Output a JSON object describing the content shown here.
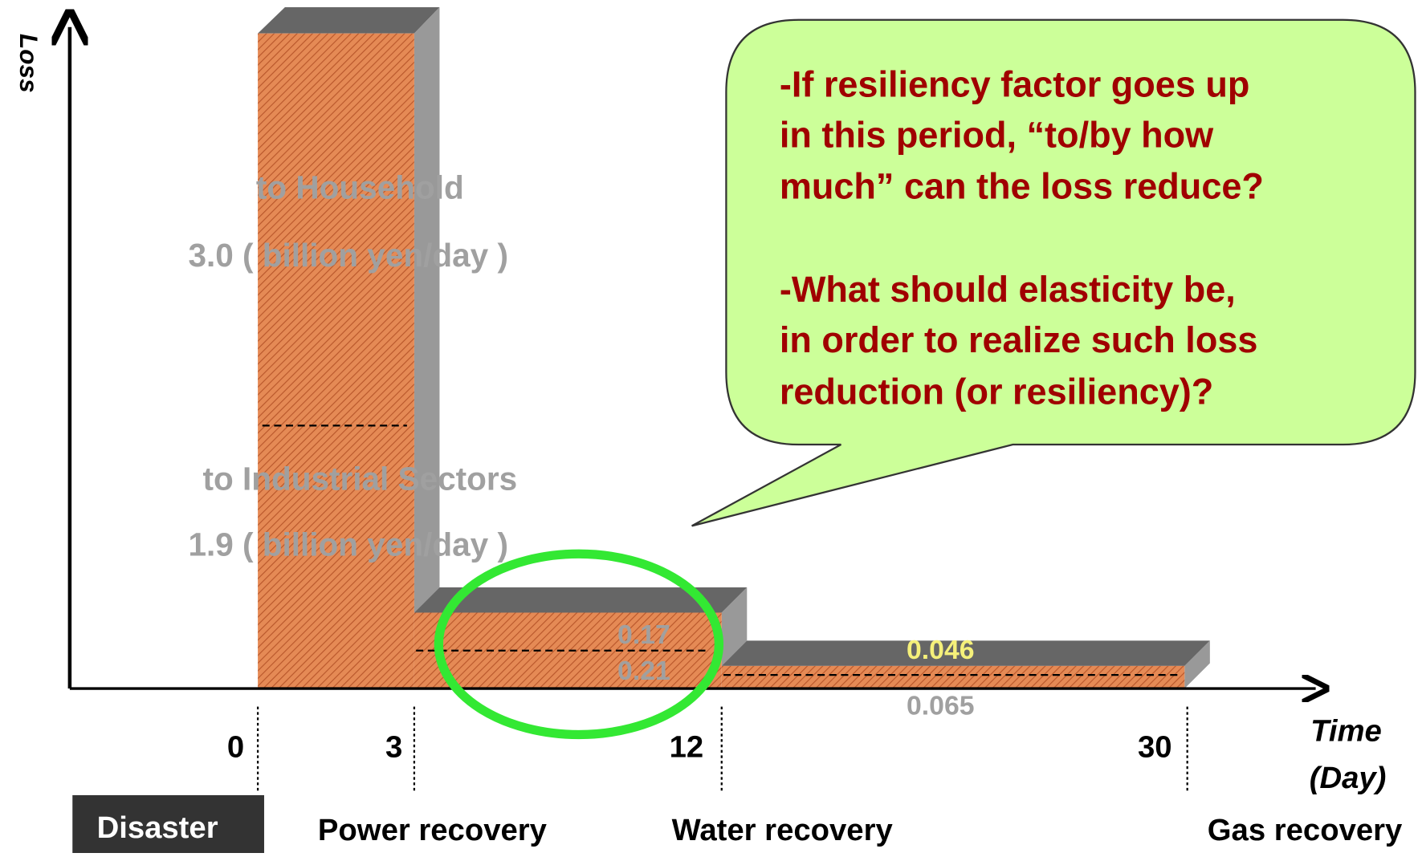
{
  "axes": {
    "y_label": "Loss",
    "x_label": [
      "Time",
      "(Day)"
    ]
  },
  "ticks": [
    "0",
    "3",
    "12",
    "30"
  ],
  "events": [
    "Disaster",
    "Power recovery",
    "Water recovery",
    "Gas recovery"
  ],
  "bar_labels": {
    "household": "to Household",
    "household_value": "3.0  ( billion yen/day )",
    "industry": "to Industrial Sectors",
    "industry_value": "1.9  ( billion yen/day )",
    "power_upper": "0.17",
    "power_lower": "0.21",
    "water_upper": "0.046",
    "water_lower": "0.065"
  },
  "callout": [
    [
      "-If resiliency factor goes up",
      "in this period, “to/by how",
      "much” can the loss reduce?"
    ],
    [
      "-What should elasticity be,",
      "in order to realize such loss",
      "reduction (or resiliency)?"
    ]
  ]
}
